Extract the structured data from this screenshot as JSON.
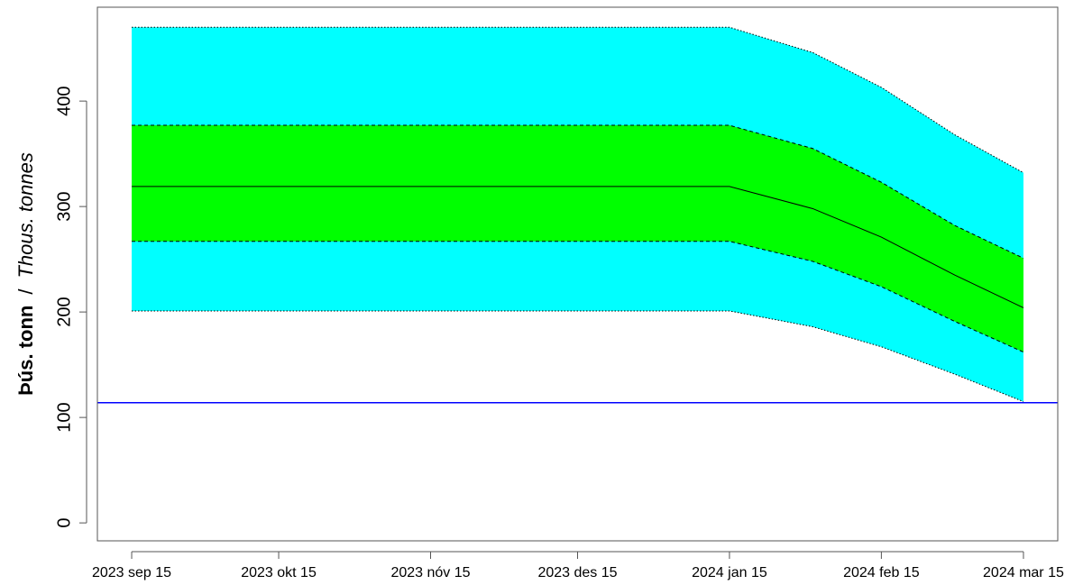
{
  "chart_data": {
    "type": "band",
    "ylabel_bold": "Þús. tonn",
    "ylabel_separator": "/",
    "ylabel_italic": "Thous. tonnes",
    "x": [
      "2023-09-15",
      "2023-10-15",
      "2023-11-15",
      "2023-12-15",
      "2024-01-15",
      "2024-02-01",
      "2024-02-15",
      "2024-03-01",
      "2024-03-15"
    ],
    "bands": [
      {
        "color": "#00ffff",
        "edge": "dotted",
        "upper": [
          470,
          470,
          470,
          470,
          470,
          446,
          413,
          368,
          332
        ],
        "lower": [
          201,
          201,
          201,
          201,
          201,
          186,
          167,
          141,
          115
        ]
      },
      {
        "color": "#00ff00",
        "edge": "dashed",
        "upper": [
          377,
          377,
          377,
          377,
          377,
          355,
          323,
          282,
          251
        ],
        "lower": [
          267,
          267,
          267,
          267,
          267,
          248,
          224,
          191,
          162
        ]
      }
    ],
    "series": [
      {
        "color": "#000000",
        "values": [
          319,
          319,
          319,
          319,
          319,
          298,
          271,
          235,
          204
        ]
      }
    ],
    "hlines": [
      {
        "value": 114,
        "color": "#0000ff"
      }
    ],
    "xlim": [
      "2023-09-08",
      "2024-03-22"
    ],
    "xticks": [
      {
        "value": "2023-09-15",
        "label": "2023 sep 15"
      },
      {
        "value": "2023-10-15",
        "label": "2023 okt 15"
      },
      {
        "value": "2023-11-15",
        "label": "2023 nóv 15"
      },
      {
        "value": "2023-12-15",
        "label": "2023 des 15"
      },
      {
        "value": "2024-01-15",
        "label": "2024 jan 15"
      },
      {
        "value": "2024-02-15",
        "label": "2024 feb 15"
      },
      {
        "value": "2024-03-15",
        "label": "2024 mar 15"
      }
    ],
    "ylim": [
      -17,
      489
    ],
    "yticks": [
      0,
      100,
      200,
      300,
      400
    ]
  }
}
